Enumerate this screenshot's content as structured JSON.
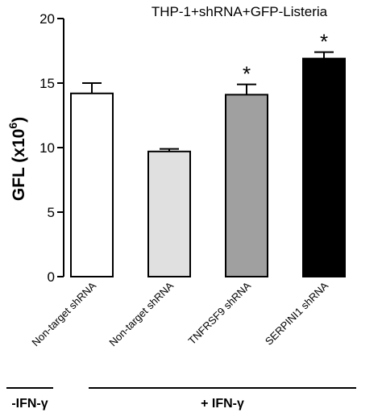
{
  "chart_data": {
    "type": "bar",
    "title": "THP-1+shRNA+GFP-Listeria",
    "ylabel_text": "GFL (x10",
    "ylabel_exp": "6",
    "ylabel_close": ")",
    "ylim": [
      0,
      20
    ],
    "yticks": [
      0,
      5,
      10,
      15,
      20
    ],
    "categories": [
      "Non-target shRNA",
      "Non-target shRNA",
      "TNFRSF9 shRNA",
      "SERPINI1 shRNA"
    ],
    "values": [
      14.2,
      9.7,
      14.1,
      16.9
    ],
    "errors": [
      0.8,
      0.2,
      0.8,
      0.5
    ],
    "colors": [
      "#ffffff",
      "#e0e0e0",
      "#a0a0a0",
      "#000000"
    ],
    "annotations": [
      "",
      "",
      "*",
      "*"
    ],
    "groups": [
      {
        "label": "-IFN-γ",
        "categories": [
          0
        ]
      },
      {
        "label": "+ IFN-γ",
        "categories": [
          1,
          2,
          3
        ]
      }
    ],
    "grid": false,
    "legend": "none"
  }
}
